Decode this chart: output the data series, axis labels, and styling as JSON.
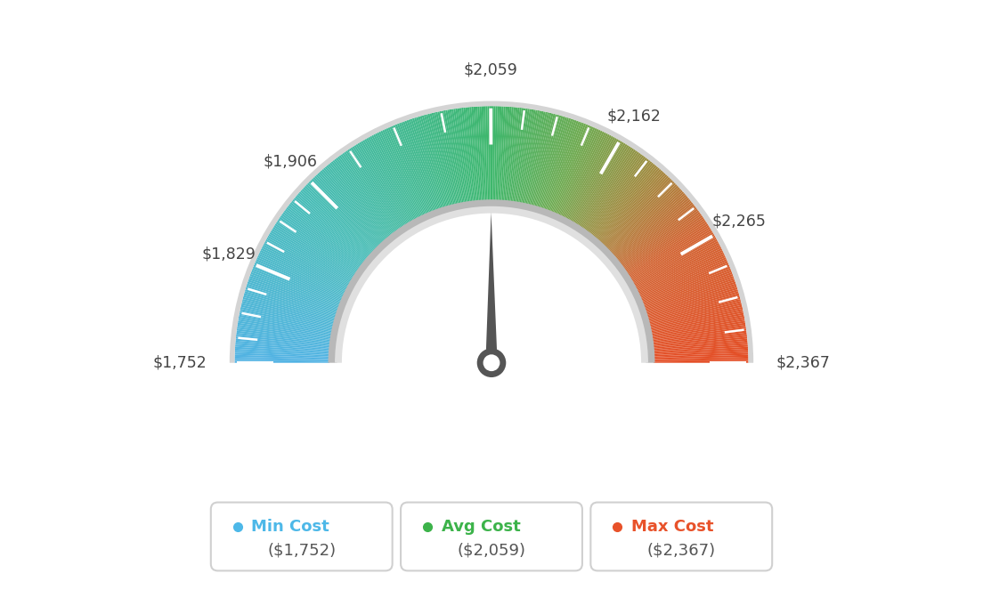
{
  "min_val": 1752,
  "avg_val": 2059,
  "max_val": 2367,
  "tick_labels": [
    "$1,752",
    "$1,829",
    "$1,906",
    "$2,059",
    "$2,162",
    "$2,265",
    "$2,367"
  ],
  "tick_values": [
    1752,
    1829,
    1906,
    2059,
    2162,
    2265,
    2367
  ],
  "legend": [
    {
      "label": "Min Cost",
      "value": "($1,752)",
      "color": "#4db8e8"
    },
    {
      "label": "Avg Cost",
      "value": "($2,059)",
      "color": "#3cb34a"
    },
    {
      "label": "Max Cost",
      "value": "($2,367)",
      "color": "#e8522a"
    }
  ],
  "background_color": "#ffffff",
  "color_stops": [
    [
      0.0,
      [
        82,
        179,
        228
      ]
    ],
    [
      0.22,
      [
        72,
        188,
        185
      ]
    ],
    [
      0.4,
      [
        65,
        185,
        140
      ]
    ],
    [
      0.5,
      [
        62,
        183,
        108
      ]
    ],
    [
      0.62,
      [
        110,
        170,
        80
      ]
    ],
    [
      0.72,
      [
        160,
        140,
        65
      ]
    ],
    [
      0.82,
      [
        210,
        100,
        50
      ]
    ],
    [
      1.0,
      [
        228,
        78,
        38
      ]
    ]
  ]
}
